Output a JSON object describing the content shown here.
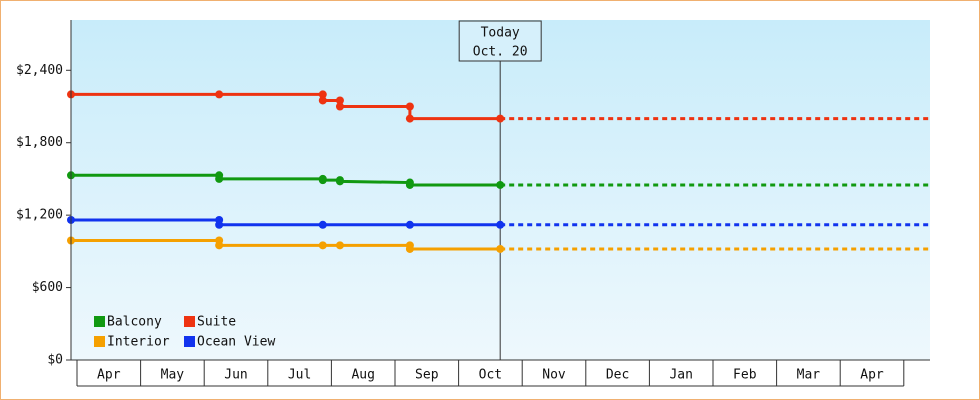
{
  "chart_data": {
    "type": "step-line",
    "categories": [
      "Apr",
      "May",
      "Jun",
      "Jul",
      "Aug",
      "Sep",
      "Oct",
      "Nov",
      "Dec",
      "Jan",
      "Feb",
      "Mar",
      "Apr"
    ],
    "xlim": [
      -0.08,
      13.43
    ],
    "ylim": [
      0,
      2800
    ],
    "yticks": [
      {
        "value": 0,
        "label": "$0"
      },
      {
        "value": 600,
        "label": "$600"
      },
      {
        "value": 1200,
        "label": "$1,200"
      },
      {
        "value": 1800,
        "label": "$1,800"
      },
      {
        "value": 2400,
        "label": "$2,400"
      }
    ],
    "annotation": {
      "lines": [
        "Today",
        "Oct. 20"
      ],
      "x": 6.67
    },
    "legend": "lower left",
    "series": [
      {
        "name": "Balcony",
        "color": "#119911",
        "x": [
          -0.08,
          2.25,
          2.25,
          3.88,
          3.88,
          4.15,
          4.15,
          5.25,
          5.25,
          6.67
        ],
        "values": [
          1530,
          1530,
          1500,
          1500,
          1490,
          1490,
          1480,
          1470,
          1450,
          1450
        ]
      },
      {
        "name": "Suite",
        "color": "#ee3311",
        "x": [
          -0.08,
          2.25,
          3.88,
          3.88,
          4.15,
          4.15,
          5.25,
          5.25,
          6.67
        ],
        "values": [
          2200,
          2200,
          2200,
          2150,
          2150,
          2100,
          2100,
          2000,
          2000
        ]
      },
      {
        "name": "Interior",
        "color": "#f5a000",
        "x": [
          -0.08,
          2.25,
          2.25,
          3.88,
          4.15,
          5.25,
          5.25,
          6.67
        ],
        "values": [
          990,
          990,
          950,
          950,
          950,
          950,
          920,
          920
        ]
      },
      {
        "name": "Ocean View",
        "color": "#1133ee",
        "x": [
          -0.08,
          2.25,
          2.25,
          3.88,
          5.25,
          6.67
        ],
        "values": [
          1160,
          1160,
          1120,
          1120,
          1120,
          1120
        ]
      }
    ]
  }
}
